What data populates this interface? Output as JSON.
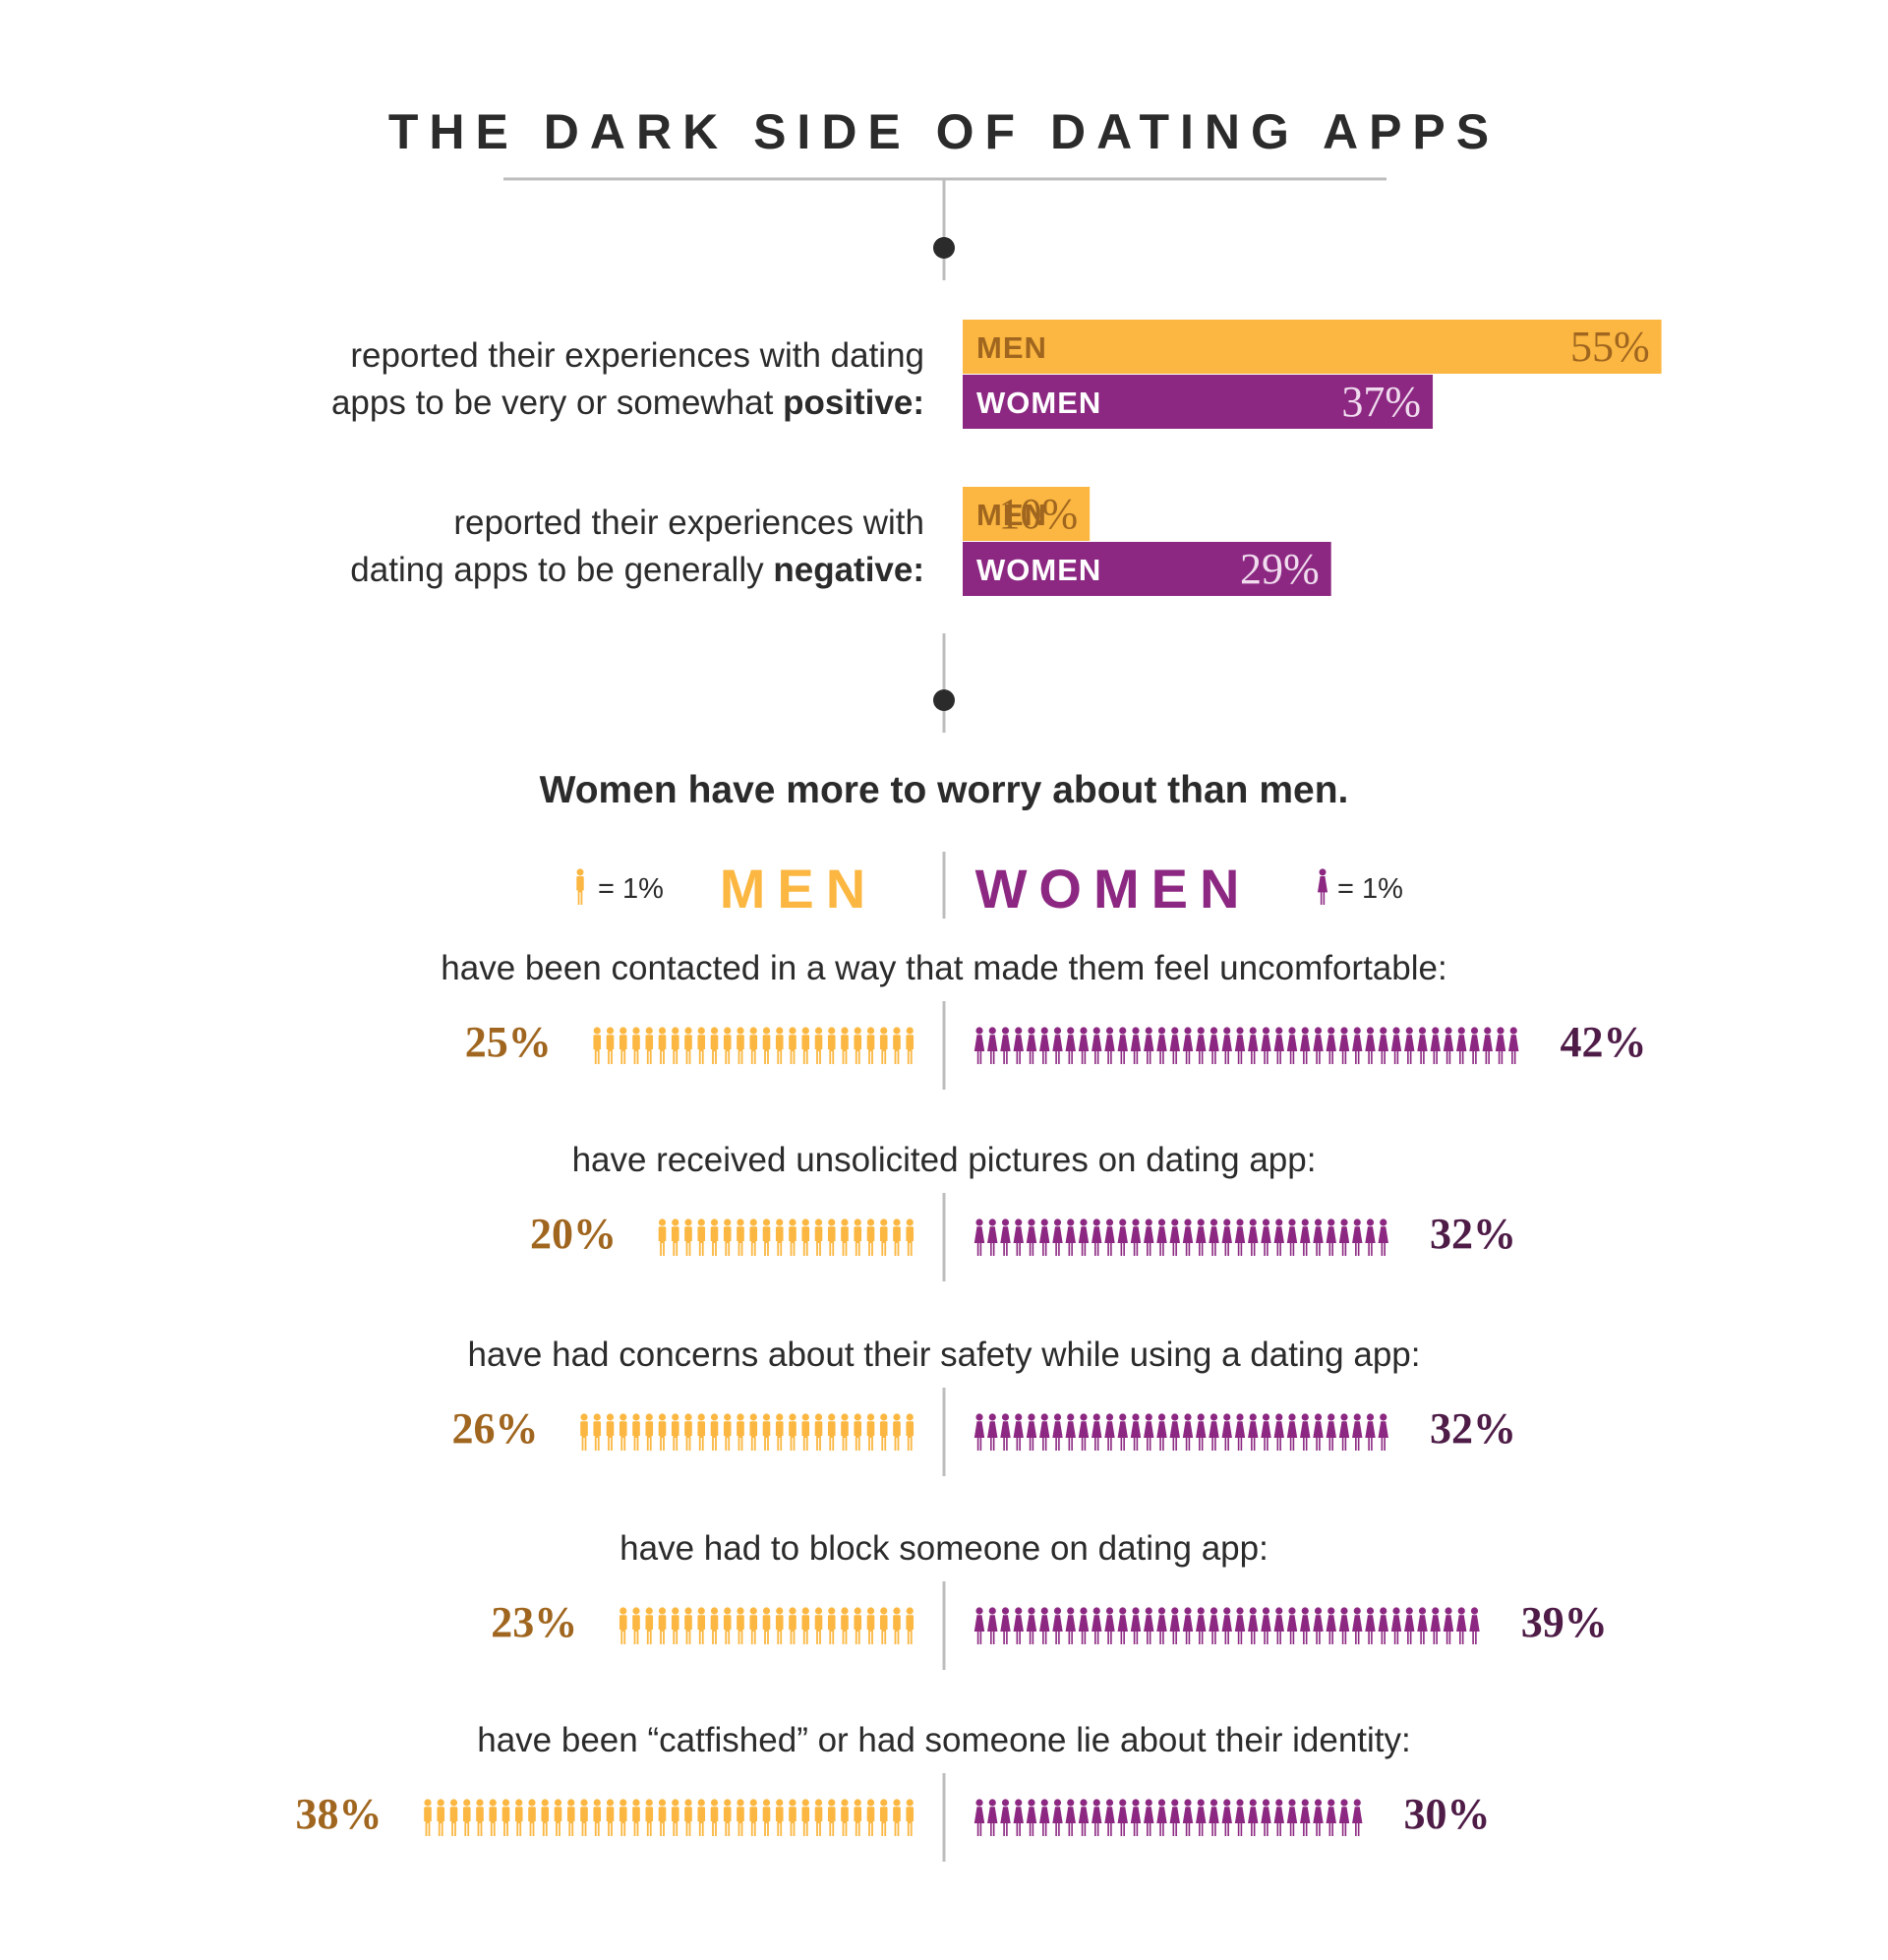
{
  "title": "THE DARK SIDE OF DATING APPS",
  "colors": {
    "men": "#fbb741",
    "men_dark": "#a0661f",
    "women": "#8c2882",
    "women_dark": "#4e1c47",
    "ink": "#2b2b2b",
    "line": "#bdbdbd"
  },
  "bar_section": {
    "groups": [
      {
        "label_line1": "reported their experiences with dating",
        "label_line2_pre": "apps to be very or somewhat ",
        "label_line2_bold": "positive:",
        "bars": [
          {
            "name": "MEN",
            "value": 55,
            "value_label": "55%"
          },
          {
            "name": "WOMEN",
            "value": 37,
            "value_label": "37%"
          }
        ]
      },
      {
        "label_line1": "reported their experiences with",
        "label_line2_pre": "dating apps to be generally ",
        "label_line2_bold": "negative:",
        "bars": [
          {
            "name": "MEN",
            "value": 10,
            "value_label": "10%"
          },
          {
            "name": "WOMEN",
            "value": 29,
            "value_label": "29%"
          }
        ]
      }
    ]
  },
  "subtitle": "Women have more to worry about than men.",
  "legend": {
    "men_header": "MEN",
    "women_header": "WOMEN",
    "men_key": "= 1%",
    "women_key": "= 1%",
    "men_icon": "man-icon",
    "women_icon": "woman-icon"
  },
  "chart_data": [
    {
      "type": "bar",
      "categories": [
        "positive",
        "negative"
      ],
      "series": [
        {
          "name": "MEN",
          "values": [
            55,
            10
          ]
        },
        {
          "name": "WOMEN",
          "values": [
            37,
            29
          ]
        }
      ]
    },
    {
      "type": "table",
      "rows": [
        {
          "label": "have been contacted in a way that made them feel uncomfortable:",
          "men": 25,
          "men_label": "25%",
          "women": 42,
          "women_label": "42%"
        },
        {
          "label": "have received unsolicited pictures on dating app:",
          "men": 20,
          "men_label": "20%",
          "women": 32,
          "women_label": "32%"
        },
        {
          "label": "have had concerns about their safety while using a dating app:",
          "men": 26,
          "men_label": "26%",
          "women": 32,
          "women_label": "32%"
        },
        {
          "label": "have had to block someone on dating app:",
          "men": 23,
          "men_label": "23%",
          "women": 39,
          "women_label": "39%"
        },
        {
          "label": "have been “catfished” or had someone lie about their identity:",
          "men": 38,
          "men_label": "38%",
          "women": 30,
          "women_label": "30%"
        }
      ]
    }
  ]
}
